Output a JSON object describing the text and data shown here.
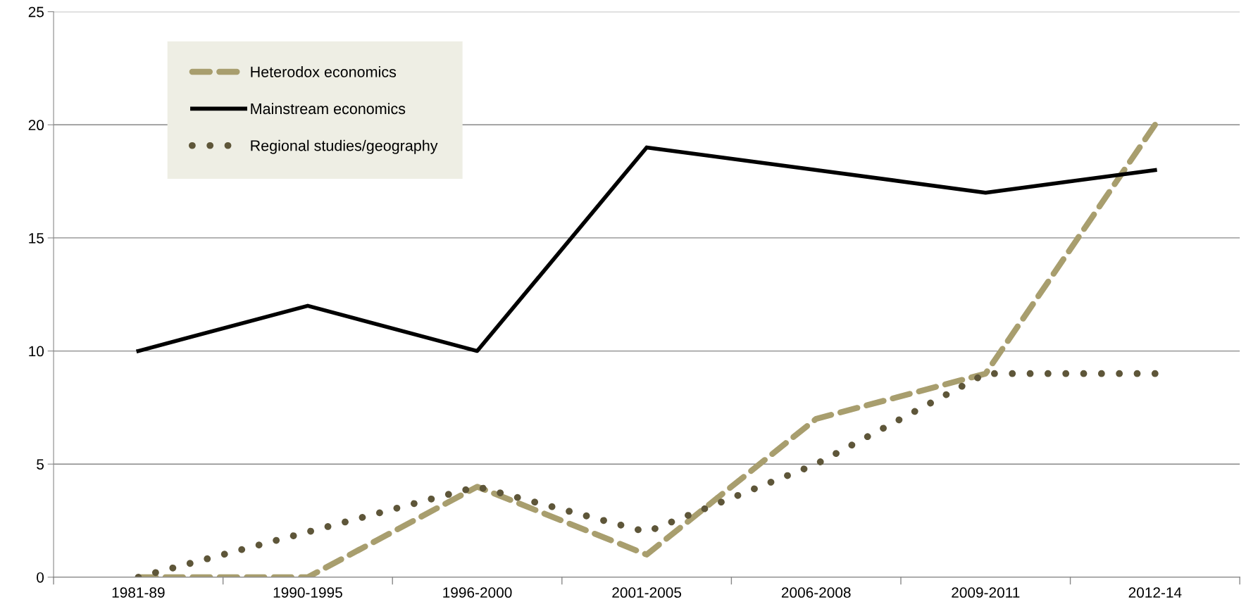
{
  "chart_data": {
    "type": "line",
    "categories": [
      "1981-89",
      "1990-1995",
      "1996-2000",
      "2001-2005",
      "2006-2008",
      "2009-2011",
      "2012-14"
    ],
    "series": [
      {
        "name": "Heterodox economics",
        "color": "#a89e6e",
        "line_style": "dashed",
        "values": [
          0,
          0,
          4,
          1,
          7,
          9,
          20
        ]
      },
      {
        "name": "Mainstream economics",
        "color": "#000000",
        "line_style": "solid",
        "values": [
          10,
          12,
          10,
          19,
          18,
          17,
          18
        ]
      },
      {
        "name": "Regional studies/geography",
        "color": "#5e5639",
        "line_style": "dotted",
        "values": [
          0,
          2,
          4,
          2,
          5,
          9,
          9
        ]
      }
    ],
    "ylim": [
      0,
      25
    ],
    "yticks": [
      0,
      5,
      10,
      15,
      20,
      25
    ],
    "grid": "y",
    "legend": "top left"
  }
}
